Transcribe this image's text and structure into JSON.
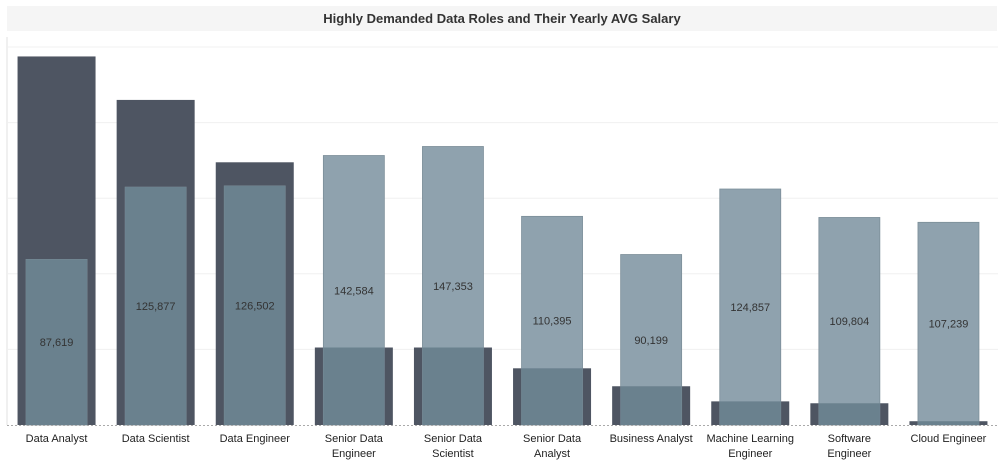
{
  "chart_data": {
    "type": "bar",
    "title": "Highly Demanded Data Roles and Their Yearly AVG Salary",
    "categories": [
      [
        "Data Analyst"
      ],
      [
        "Data Scientist"
      ],
      [
        "Data Engineer"
      ],
      [
        "Senior Data",
        "Engineer"
      ],
      [
        "Senior Data",
        "Scientist"
      ],
      [
        "Senior Data",
        "Analyst"
      ],
      [
        "Business Analyst"
      ],
      [
        "Machine Learning",
        "Engineer"
      ],
      [
        "Software",
        "Engineer"
      ],
      [
        "Cloud Engineer"
      ]
    ],
    "series": [
      {
        "role": "background-bars (dark, unlabeled)",
        "values": [
          195000,
          172000,
          139000,
          41000,
          41000,
          30000,
          20500,
          12500,
          11500,
          2000
        ]
      },
      {
        "role": "foreground-bars (light, labeled)",
        "values": [
          87619,
          125877,
          126502,
          142584,
          147353,
          110395,
          90199,
          124857,
          109804,
          107239
        ],
        "labels": [
          "87,619",
          "125,877",
          "126,502",
          "142,584",
          "147,353",
          "110,395",
          "90,199",
          "124,857",
          "109,804",
          "107,239"
        ]
      }
    ],
    "ylim": [
      0,
      200000
    ],
    "grid": true,
    "colors": {
      "dark": "#4e5562",
      "light": "#8fa2ae",
      "overlap": "#6a818e"
    }
  }
}
